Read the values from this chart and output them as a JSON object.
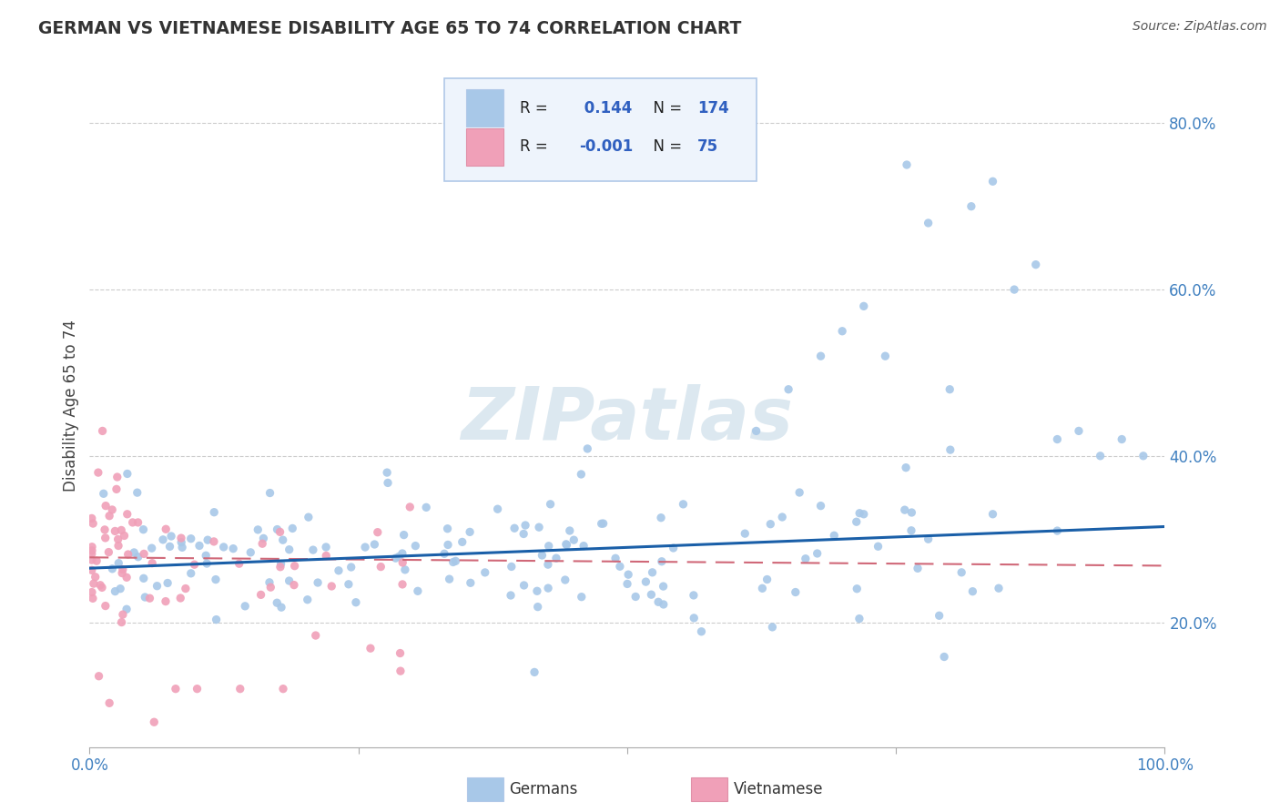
{
  "title": "GERMAN VS VIETNAMESE DISABILITY AGE 65 TO 74 CORRELATION CHART",
  "source_text": "Source: ZipAtlas.com",
  "ylabel": "Disability Age 65 to 74",
  "xlim": [
    0.0,
    1.0
  ],
  "ylim": [
    0.05,
    0.87
  ],
  "y_ticks": [
    0.2,
    0.4,
    0.6,
    0.8
  ],
  "y_tick_labels": [
    "20.0%",
    "40.0%",
    "60.0%",
    "80.0%"
  ],
  "x_ticks": [
    0.0,
    0.25,
    0.5,
    0.75,
    1.0
  ],
  "x_tick_labels": [
    "0.0%",
    "",
    "",
    "",
    "100.0%"
  ],
  "german_R": 0.144,
  "german_N": 174,
  "vietnamese_R": -0.001,
  "vietnamese_N": 75,
  "german_color": "#a8c8e8",
  "vietnamese_color": "#f0a0b8",
  "german_line_color": "#1a5fa8",
  "vietnamese_line_color": "#d06878",
  "background_color": "#ffffff",
  "watermark_text": "ZIPatlas",
  "watermark_color": "#dce8f0",
  "legend_R_color": "#3060c0",
  "title_color": "#333333",
  "source_color": "#555555",
  "axis_label_color": "#444444",
  "tick_color": "#4080c0",
  "grid_color": "#cccccc",
  "spine_color": "#aaaaaa",
  "legend_border_color": "#b0c8e8",
  "legend_bg_color": "#eef4fc"
}
